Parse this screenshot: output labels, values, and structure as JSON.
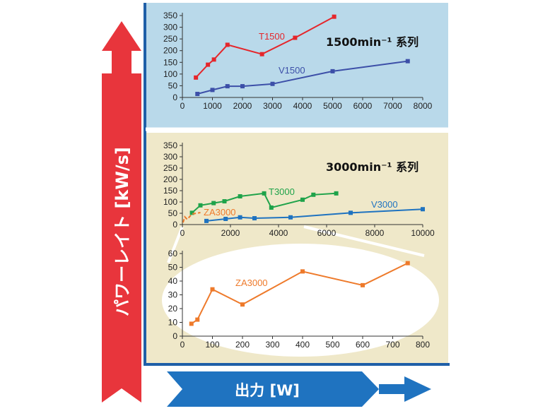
{
  "y_axis_title": "パワーレイト [kW/s]",
  "x_axis_title": "出力 [W]",
  "colors": {
    "top_panel_bg": "#b9d9ea",
    "mid_panel_bg": "#efe8c9",
    "frame": "#1f5fa8",
    "up_arrow": "#e8353c",
    "right_arrow": "#1f73c0"
  },
  "chart_data": [
    {
      "type": "line",
      "title": "1500min⁻¹ 系列",
      "xlim": [
        0,
        8000
      ],
      "ylim": [
        0,
        350
      ],
      "x_ticks": [
        "0",
        "1000",
        "2000",
        "3000",
        "4000",
        "5000",
        "6000",
        "7000",
        "8000"
      ],
      "y_ticks": [
        "0",
        "50",
        "100",
        "150",
        "200",
        "250",
        "300",
        "350"
      ],
      "grid": false,
      "series": [
        {
          "name": "T1500",
          "color": "#e5262b",
          "x": [
            450,
            850,
            1050,
            1500,
            2650,
            3750,
            5050
          ],
          "y": [
            85,
            140,
            162,
            225,
            185,
            255,
            345
          ]
        },
        {
          "name": "V1500",
          "color": "#3c4fa8",
          "x": [
            500,
            1000,
            1500,
            2000,
            3000,
            5000,
            7500
          ],
          "y": [
            15,
            32,
            48,
            48,
            58,
            112,
            155
          ]
        }
      ]
    },
    {
      "type": "line",
      "title": "3000min⁻¹ 系列",
      "xlim": [
        0,
        10000
      ],
      "ylim": [
        0,
        350
      ],
      "x_ticks": [
        "0",
        "2000",
        "4000",
        "6000",
        "8000",
        "10000"
      ],
      "y_ticks": [
        "0",
        "50",
        "100",
        "150",
        "200",
        "250",
        "300",
        "350"
      ],
      "grid": false,
      "series": [
        {
          "name": "T3000",
          "color": "#1fa34a",
          "x": [
            400,
            750,
            1300,
            1750,
            2400,
            3400,
            3700,
            5000,
            5450,
            6400
          ],
          "y": [
            52,
            85,
            95,
            103,
            125,
            138,
            75,
            110,
            132,
            138
          ]
        },
        {
          "name": "V3000",
          "color": "#1f73c0",
          "x": [
            1000,
            1800,
            2400,
            3000,
            4500,
            7000,
            10000
          ],
          "y": [
            16,
            25,
            32,
            28,
            32,
            52,
            68
          ]
        },
        {
          "name": "ZA3000",
          "color": "#ee7a2b",
          "x": [
            30,
            100,
            200,
            400,
            750
          ],
          "y": [
            9,
            34,
            23,
            47,
            53
          ]
        }
      ]
    },
    {
      "type": "line",
      "xlim": [
        0,
        800
      ],
      "ylim": [
        0,
        60
      ],
      "x_ticks": [
        "0",
        "100",
        "200",
        "300",
        "400",
        "500",
        "600",
        "700",
        "800"
      ],
      "y_ticks": [
        "0",
        "10",
        "20",
        "30",
        "40",
        "50",
        "60"
      ],
      "grid": false,
      "series": [
        {
          "name": "ZA3000",
          "color": "#ee7a2b",
          "x": [
            30,
            50,
            100,
            200,
            400,
            600,
            750
          ],
          "y": [
            9,
            12,
            34,
            23,
            47,
            37,
            53
          ]
        }
      ]
    }
  ]
}
